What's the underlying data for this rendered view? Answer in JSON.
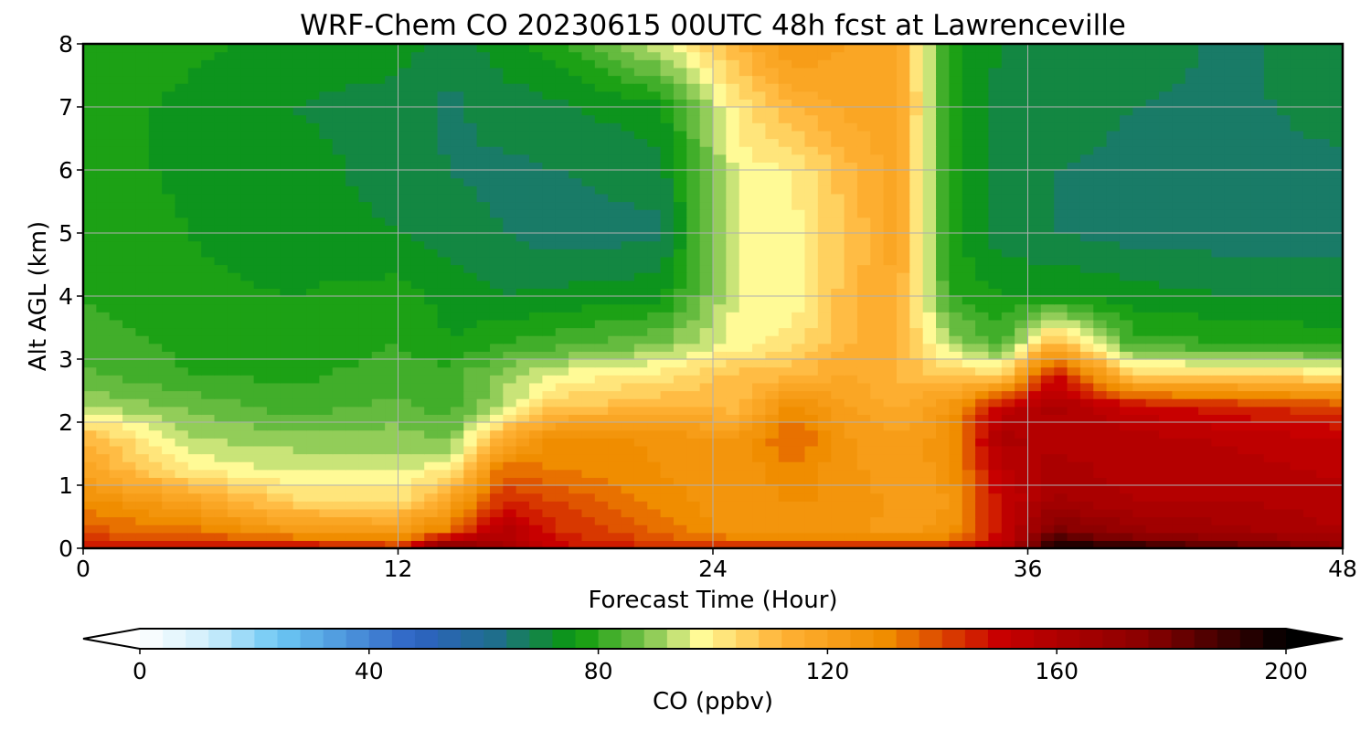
{
  "chart_data": {
    "type": "heatmap",
    "title": "WRF-Chem CO  20230615 00UTC 48h fcst at Lawrenceville",
    "xlabel": "Forecast Time (Hour)",
    "ylabel": "Alt AGL (km)",
    "x_ticks": [
      "0",
      "12",
      "24",
      "36",
      "48"
    ],
    "y_ticks": [
      "0",
      "1",
      "2",
      "3",
      "4",
      "5",
      "6",
      "7",
      "8"
    ],
    "xlim": [
      0,
      48
    ],
    "ylim": [
      0,
      8
    ],
    "grid": true,
    "x": [
      0,
      4,
      8,
      12,
      14,
      16,
      18,
      22,
      25,
      27,
      29,
      31,
      33,
      35,
      37,
      40,
      44,
      48
    ],
    "y": [
      0,
      0.25,
      0.75,
      1.25,
      1.75,
      2.25,
      2.75,
      3.25,
      4,
      5,
      6,
      7,
      8
    ],
    "z": [
      [
        148,
        150,
        152,
        145,
        185,
        165,
        150,
        145,
        150,
        150,
        150,
        150,
        150,
        155,
        200,
        195,
        185,
        175
      ],
      [
        138,
        135,
        125,
        123,
        135,
        160,
        145,
        135,
        125,
        125,
        125,
        123,
        125,
        150,
        180,
        170,
        165,
        160
      ],
      [
        130,
        120,
        105,
        103,
        120,
        145,
        140,
        130,
        125,
        128,
        128,
        122,
        124,
        150,
        165,
        160,
        160,
        158
      ],
      [
        118,
        100,
        95,
        95,
        100,
        135,
        132,
        128,
        125,
        132,
        125,
        122,
        125,
        155,
        162,
        158,
        158,
        155
      ],
      [
        112,
        92,
        90,
        90,
        87,
        115,
        130,
        127,
        124,
        138,
        125,
        120,
        127,
        162,
        158,
        158,
        155,
        152
      ],
      [
        92,
        87,
        82,
        85,
        82,
        92,
        107,
        112,
        110,
        130,
        120,
        115,
        124,
        152,
        162,
        150,
        145,
        140
      ],
      [
        85,
        80,
        79,
        82,
        82,
        90,
        97,
        102,
        110,
        110,
        117,
        112,
        107,
        105,
        150,
        105,
        105,
        102
      ],
      [
        82,
        79,
        77,
        80,
        76,
        80,
        82,
        88,
        98,
        102,
        112,
        112,
        92,
        82,
        112,
        82,
        80,
        78
      ],
      [
        80,
        77,
        76,
        78,
        74,
        72,
        73,
        75,
        97,
        96,
        110,
        116,
        80,
        76,
        76,
        74,
        72,
        72
      ],
      [
        80,
        76,
        74,
        72,
        70,
        68,
        66,
        67,
        98,
        98,
        108,
        118,
        77,
        70,
        68,
        66,
        66,
        66
      ],
      [
        78,
        75,
        74,
        70,
        68,
        67,
        68,
        70,
        98,
        100,
        110,
        118,
        77,
        69,
        68,
        67,
        66,
        67
      ],
      [
        78,
        75,
        72,
        70,
        67,
        70,
        71,
        75,
        102,
        112,
        117,
        120,
        78,
        70,
        70,
        68,
        67,
        70
      ],
      [
        78,
        77,
        75,
        74,
        70,
        74,
        78,
        95,
        112,
        125,
        120,
        118,
        78,
        72,
        72,
        70,
        67,
        72
      ]
    ],
    "colorbar": {
      "label": "CO  (ppbv)",
      "min": 0,
      "max": 200,
      "ticks": [
        "0",
        "40",
        "80",
        "120",
        "160",
        "200"
      ],
      "extend": "both"
    },
    "colormap_stops": [
      {
        "v": 0,
        "c": "#ffffff"
      },
      {
        "v": 12,
        "c": "#cfeefb"
      },
      {
        "v": 24,
        "c": "#6cc8f4"
      },
      {
        "v": 48,
        "c": "#2e62c4"
      },
      {
        "v": 62,
        "c": "#1f6e8c"
      },
      {
        "v": 76,
        "c": "#0a9a0a"
      },
      {
        "v": 88,
        "c": "#77c24a"
      },
      {
        "v": 98,
        "c": "#fffa96"
      },
      {
        "v": 112,
        "c": "#ffb236"
      },
      {
        "v": 130,
        "c": "#f08d00"
      },
      {
        "v": 150,
        "c": "#c80000"
      },
      {
        "v": 176,
        "c": "#880000"
      },
      {
        "v": 192,
        "c": "#300000"
      },
      {
        "v": 200,
        "c": "#000000"
      }
    ]
  }
}
